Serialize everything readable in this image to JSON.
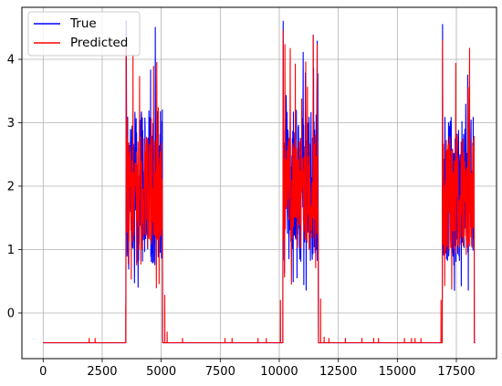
{
  "chart_data": {
    "type": "line",
    "title": "",
    "xlabel": "",
    "ylabel": "",
    "xlim": [
      -900,
      19200
    ],
    "ylim": [
      -0.72,
      4.82
    ],
    "grid": true,
    "legend_position": "upper-left",
    "x_ticks": [
      0,
      2500,
      5000,
      7500,
      10000,
      12500,
      15000,
      17500
    ],
    "x_tick_labels": [
      "0",
      "2500",
      "5000",
      "7500",
      "10000",
      "12500",
      "15000",
      "17500"
    ],
    "y_ticks": [
      0,
      1,
      2,
      3,
      4
    ],
    "y_tick_labels": [
      "0",
      "1",
      "2",
      "3",
      "4"
    ],
    "series": [
      {
        "name": "True",
        "color": "#0000ff",
        "baseline": -0.47,
        "bursts": [
          {
            "x": [
              3500,
              5050
            ],
            "min": 0.3,
            "max": 4.6,
            "typical": [
              0.8,
              3.2
            ]
          },
          {
            "x": [
              10150,
              11650
            ],
            "min": 0.3,
            "max": 4.6,
            "typical": [
              0.8,
              3.2
            ]
          },
          {
            "x": [
              16900,
              18250
            ],
            "min": 0.3,
            "max": 4.55,
            "typical": [
              0.8,
              3.1
            ]
          }
        ]
      },
      {
        "name": "Predicted",
        "color": "#ff0000",
        "baseline": -0.47,
        "bursts": [
          {
            "x": [
              3500,
              5050
            ],
            "min": 0.3,
            "max": 4.2,
            "typical": [
              1.0,
              2.8
            ]
          },
          {
            "x": [
              10150,
              11650
            ],
            "min": 0.3,
            "max": 4.45,
            "typical": [
              1.0,
              2.8
            ]
          },
          {
            "x": [
              16900,
              18250
            ],
            "min": 0.3,
            "max": 4.3,
            "typical": [
              1.0,
              2.8
            ]
          }
        ],
        "spikes": [
          {
            "x": 3500,
            "y": 0.12
          },
          {
            "x": 5150,
            "y": 0.28
          },
          {
            "x": 5250,
            "y": -0.3
          },
          {
            "x": 10050,
            "y": 0.2
          },
          {
            "x": 11750,
            "y": 0.22
          },
          {
            "x": 16850,
            "y": 0.2
          },
          {
            "x": 1950,
            "y": -0.4
          },
          {
            "x": 2200,
            "y": -0.4
          },
          {
            "x": 5900,
            "y": -0.4
          },
          {
            "x": 7700,
            "y": -0.4
          },
          {
            "x": 8000,
            "y": -0.4
          },
          {
            "x": 9100,
            "y": -0.4
          },
          {
            "x": 9450,
            "y": -0.4
          },
          {
            "x": 11900,
            "y": -0.38
          },
          {
            "x": 12100,
            "y": -0.4
          },
          {
            "x": 12800,
            "y": -0.4
          },
          {
            "x": 13500,
            "y": -0.4
          },
          {
            "x": 14000,
            "y": -0.4
          },
          {
            "x": 14200,
            "y": -0.4
          },
          {
            "x": 15300,
            "y": -0.4
          },
          {
            "x": 15600,
            "y": -0.4
          },
          {
            "x": 15750,
            "y": -0.4
          },
          {
            "x": 16000,
            "y": -0.4
          }
        ]
      }
    ]
  }
}
